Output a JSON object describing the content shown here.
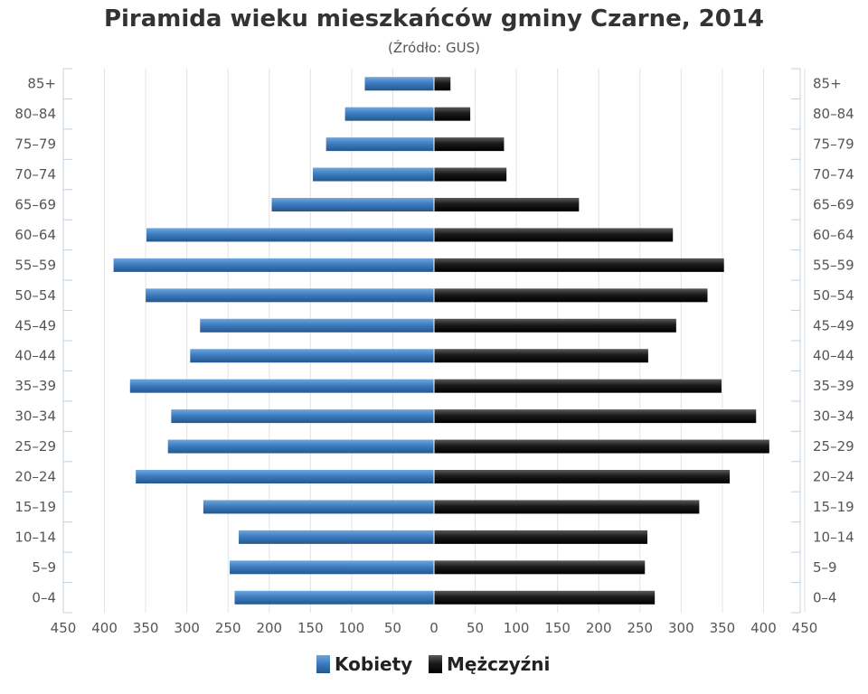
{
  "chart_data": {
    "type": "bar",
    "orientation": "horizontal-population-pyramid",
    "title": "Piramida wieku mieszkańców gminy Czarne, 2014",
    "subtitle": "(Źródło: GUS)",
    "categories": [
      "85+",
      "80–84",
      "75–79",
      "70–74",
      "65–69",
      "60–64",
      "55–59",
      "50–54",
      "45–49",
      "40–44",
      "35–39",
      "30–34",
      "25–29",
      "20–24",
      "15–19",
      "10–14",
      "5–9",
      "0–4"
    ],
    "series": [
      {
        "name": "Kobiety",
        "color": "#3d7dc0",
        "side": "left",
        "values": [
          84,
          108,
          131,
          147,
          197,
          349,
          389,
          350,
          284,
          296,
          369,
          319,
          323,
          362,
          280,
          237,
          248,
          242
        ]
      },
      {
        "name": "Mężczyźni",
        "color": "#1a1a1a",
        "side": "right",
        "values": [
          20,
          44,
          85,
          88,
          176,
          290,
          352,
          332,
          294,
          260,
          349,
          391,
          407,
          359,
          322,
          259,
          256,
          268
        ]
      }
    ],
    "xlim": [
      -450,
      450
    ],
    "x_ticks": [
      450,
      400,
      350,
      300,
      250,
      200,
      150,
      100,
      50,
      0,
      50,
      100,
      150,
      200,
      250,
      300,
      350,
      400,
      450
    ],
    "grid": true,
    "legend_position": "bottom-center"
  }
}
